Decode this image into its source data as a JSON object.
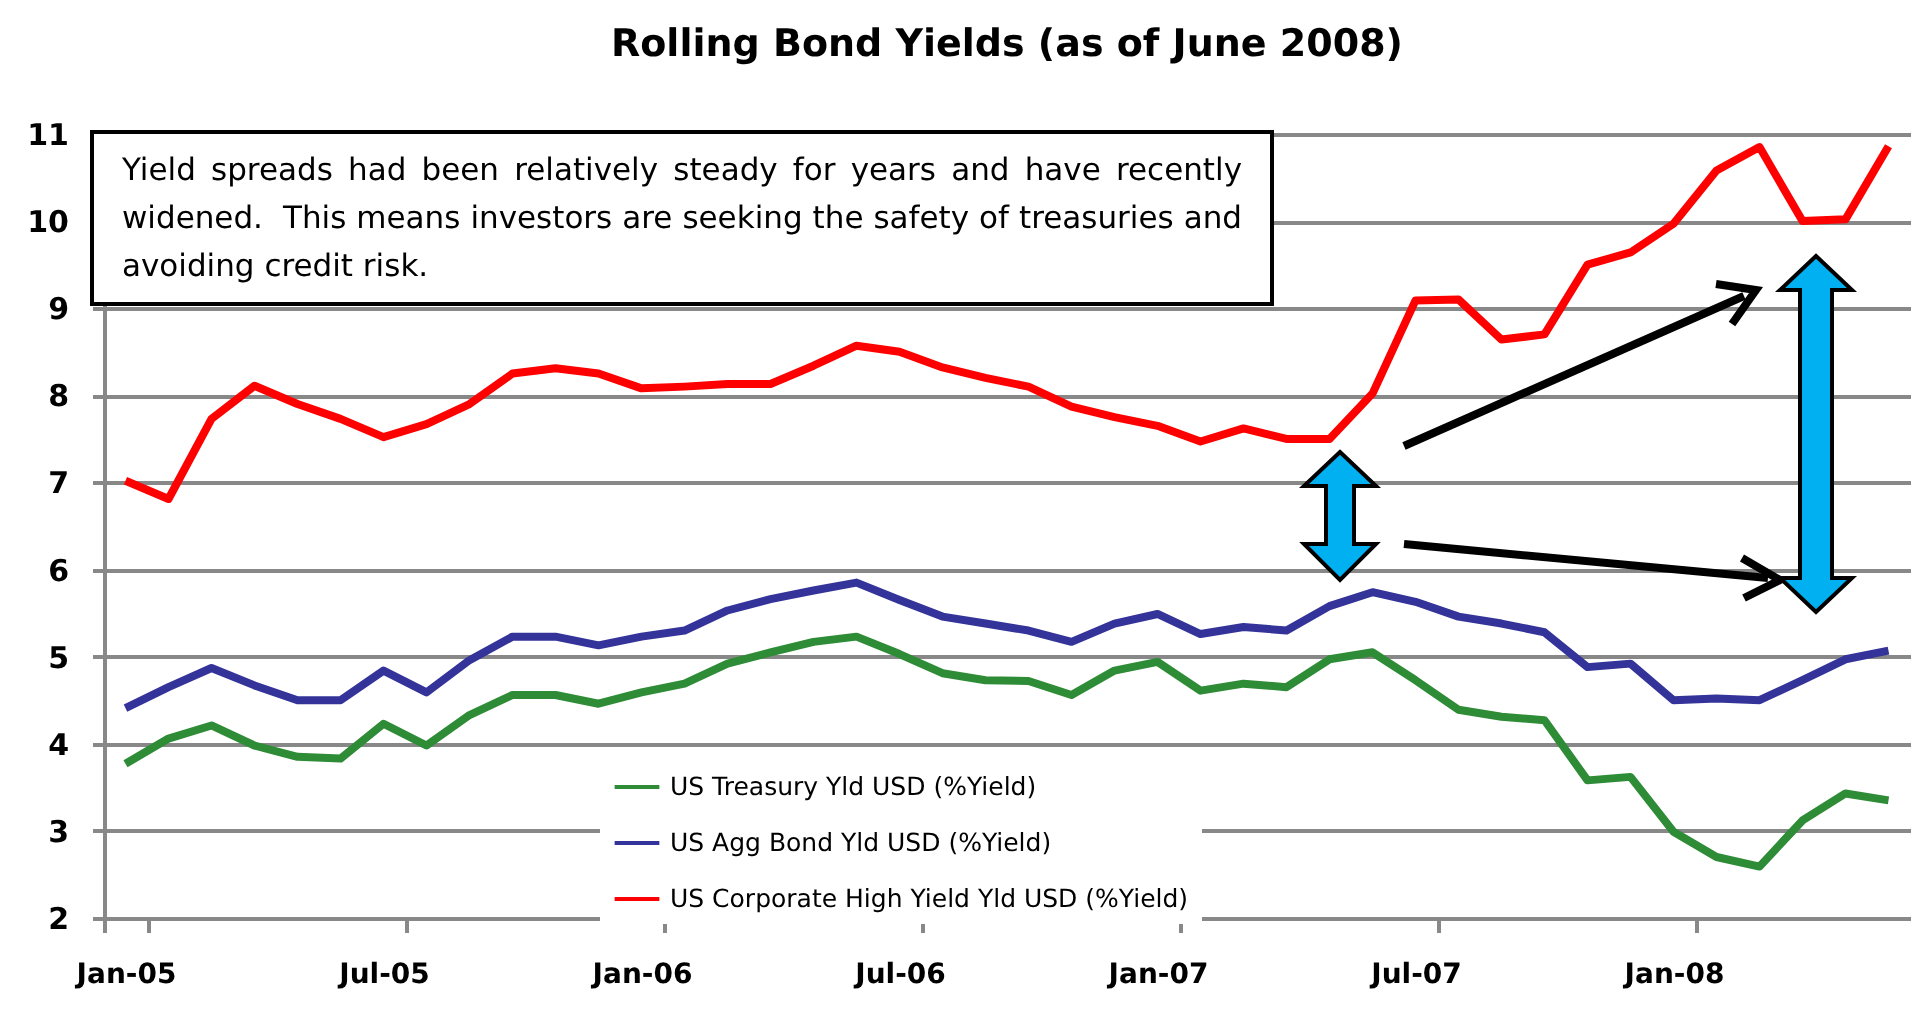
{
  "chart_data": {
    "type": "line",
    "title": "Rolling Bond Yields (as of June 2008)",
    "categories": [
      "Jan-05",
      null,
      null,
      null,
      null,
      null,
      "Jul-05",
      null,
      null,
      null,
      null,
      null,
      "Jan-06",
      null,
      null,
      null,
      null,
      null,
      "Jul-06",
      null,
      null,
      null,
      null,
      null,
      "Jan-07",
      null,
      null,
      null,
      null,
      null,
      "Jul-07",
      null,
      null,
      null,
      null,
      null,
      "Jan-08",
      null,
      null,
      null,
      null,
      null
    ],
    "series": [
      {
        "name": "US Treasury Yld USD (%Yield)",
        "color": "#2e8b36",
        "values": [
          3.77,
          4.06,
          4.21,
          3.98,
          3.85,
          3.83,
          4.23,
          3.98,
          4.33,
          4.56,
          4.56,
          4.46,
          4.59,
          4.69,
          4.92,
          5.05,
          5.17,
          5.23,
          5.03,
          4.81,
          4.73,
          4.72,
          4.56,
          4.84,
          4.94,
          4.61,
          4.69,
          4.65,
          4.97,
          5.05,
          4.73,
          4.39,
          4.31,
          4.27,
          3.58,
          3.62,
          2.99,
          2.7,
          2.59,
          3.12,
          3.43,
          3.35
        ]
      },
      {
        "name": "US Agg Bond Yld USD (%Yield)",
        "color": "#333399",
        "values": [
          4.41,
          4.65,
          4.87,
          4.67,
          4.5,
          4.5,
          4.84,
          4.59,
          4.96,
          5.23,
          5.23,
          5.13,
          5.23,
          5.3,
          5.53,
          5.66,
          5.76,
          5.85,
          5.65,
          5.46,
          5.38,
          5.3,
          5.17,
          5.38,
          5.49,
          5.26,
          5.34,
          5.3,
          5.58,
          5.74,
          5.63,
          5.46,
          5.38,
          5.28,
          4.88,
          4.92,
          4.5,
          4.52,
          4.5,
          4.73,
          4.97,
          5.07
        ]
      },
      {
        "name": "US Corporate High Yield Yld USD (%Yield)",
        "color": "#ff0000",
        "values": [
          7.02,
          6.81,
          7.73,
          8.11,
          7.9,
          7.73,
          7.52,
          7.67,
          7.9,
          8.25,
          8.31,
          8.25,
          8.08,
          8.1,
          8.13,
          8.13,
          8.34,
          8.57,
          8.5,
          8.32,
          8.2,
          8.1,
          7.87,
          7.75,
          7.65,
          7.47,
          7.62,
          7.5,
          7.5,
          8.02,
          9.09,
          9.1,
          8.64,
          8.7,
          9.5,
          9.64,
          9.97,
          10.58,
          10.85,
          10.0,
          10.02,
          10.86
        ]
      }
    ],
    "ylim": [
      2,
      11
    ],
    "yticks": [
      2,
      3,
      4,
      5,
      6,
      7,
      8,
      9,
      10,
      11
    ],
    "grid": "y",
    "legend": "bottom",
    "marker": "none",
    "line_style": "solid",
    "annotations": [
      "Yield spreads had been relatively steady for years and have recently widened.  This means investors are seeking the safety of treasuries and avoiding credit risk."
    ]
  }
}
